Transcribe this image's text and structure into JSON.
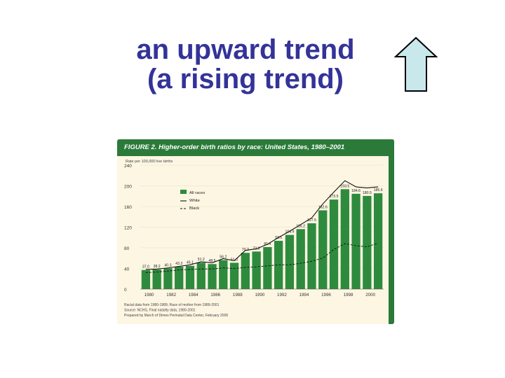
{
  "slide": {
    "title_line1": "an upward trend",
    "title_line2": "(a rising trend)",
    "arrow_icon": "up-arrow-icon",
    "arrow_fill": "#c9e8ec",
    "arrow_stroke": "#000000"
  },
  "figure": {
    "header": "FIGURE 2. Higher-order birth ratios by race: United States, 1980–2001",
    "notes": [
      "Racial data from 1980-1989; Race of mother from 1989-2001",
      "Source: NCHS, Final natality data, 1980-2001",
      "Prepared by March of Dimes Perinatal Data Center, February 2005"
    ],
    "colors": {
      "header": "#2b7a3a",
      "bar": "#2e8b3e",
      "background": "#fdf6e3"
    }
  },
  "chart_data": {
    "type": "bar",
    "ylabel": "Rate per 100,000 live births",
    "ylim": [
      0,
      240
    ],
    "yticks": [
      0,
      40,
      80,
      120,
      160,
      200,
      240
    ],
    "x_tick_labels": [
      "1980",
      "1982",
      "1984",
      "1986",
      "1988",
      "1990",
      "1992",
      "1994",
      "1996",
      "1998",
      "2000"
    ],
    "categories": [
      "1980",
      "1981",
      "1982",
      "1983",
      "1984",
      "1985",
      "1986",
      "1987",
      "1988",
      "1989",
      "1990",
      "1991",
      "1992",
      "1993",
      "1994",
      "1995",
      "1996",
      "1997",
      "1998",
      "1999",
      "2000",
      "2001"
    ],
    "legend": {
      "placement": "top-left",
      "entries": [
        "All races",
        "White",
        "Black"
      ]
    },
    "series": [
      {
        "name": "All races",
        "kind": "bar",
        "values": [
          37.0,
          38.2,
          40.3,
          43.3,
          45.1,
          51.2,
          48.5,
          56.2,
          51.0,
          70.2,
          72.8,
          81.4,
          93.5,
          104.9,
          116.2,
          127.5,
          152.6,
          173.5,
          193.5,
          184.6,
          180.5,
          185.6
        ],
        "labels": [
          "37.0",
          "38.2",
          "40.3",
          "43.3",
          "45.1",
          "51.2",
          "48.5",
          "56.2",
          "51.0",
          "70.2",
          "72.8",
          "81.4",
          "93.5",
          "104.9",
          "116.2",
          "127.5",
          "152.6",
          "173.5",
          "193.5",
          "184.6",
          "180.5",
          "185.6"
        ]
      },
      {
        "name": "White",
        "kind": "line",
        "values": [
          38,
          39,
          41,
          44,
          47,
          53,
          51,
          59,
          55,
          75,
          78,
          87,
          100,
          112,
          125,
          138,
          165,
          188,
          210,
          198,
          196,
          198
        ]
      },
      {
        "name": "Black",
        "kind": "line",
        "values": [
          32,
          33,
          35,
          37,
          38,
          39,
          39,
          41,
          40,
          42,
          43,
          45,
          47,
          47,
          50,
          54,
          60,
          77,
          88,
          84,
          82,
          89
        ]
      }
    ]
  }
}
